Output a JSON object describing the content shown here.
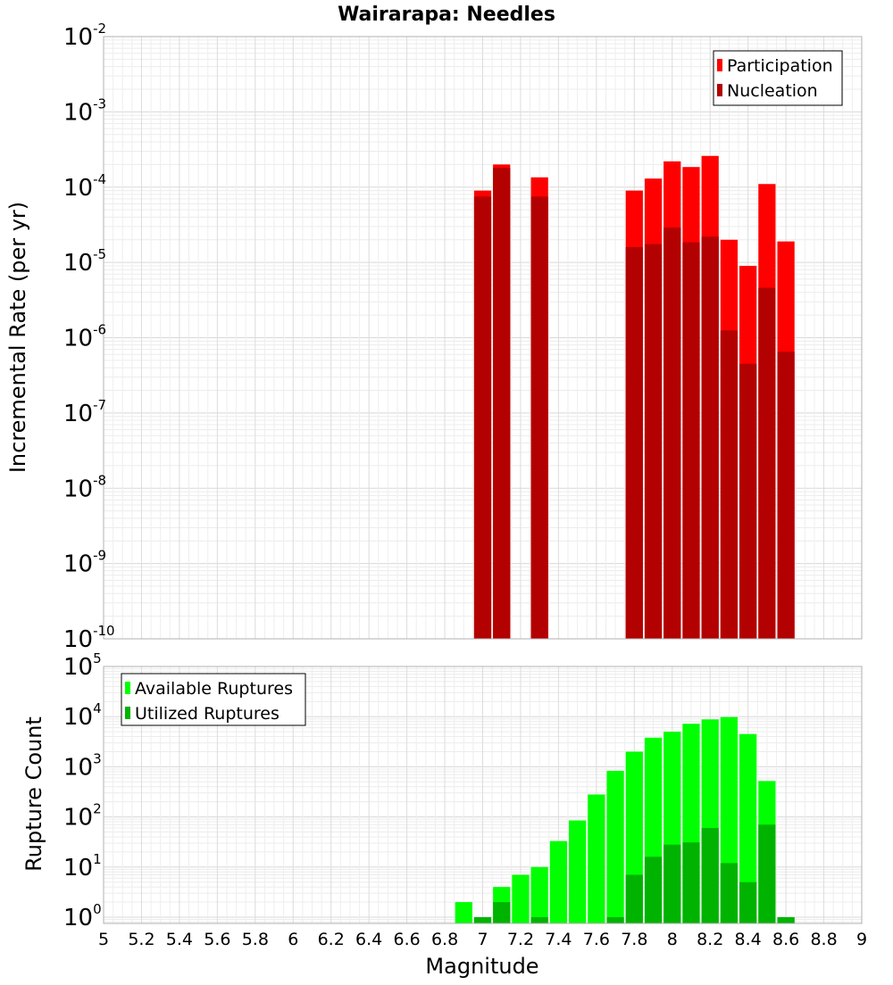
{
  "chart_data": [
    {
      "type": "bar",
      "title": "Wairarapa: Needles",
      "xlabel": "",
      "ylabel": "Incremental Rate (per yr)",
      "yscale": "log",
      "ylim": [
        1e-10,
        0.01
      ],
      "xlim": [
        5,
        9
      ],
      "grid": true,
      "legend_position": "top-right",
      "bin_width": 0.1,
      "series": [
        {
          "name": "Participation",
          "color": "#ff0000",
          "x": [
            7.0,
            7.1,
            7.3,
            7.8,
            7.9,
            8.0,
            8.1,
            8.2,
            8.3,
            8.4,
            8.5,
            8.6
          ],
          "values": [
            9e-05,
            0.0002,
            0.000135,
            9e-05,
            0.00013,
            0.00022,
            0.000185,
            0.00026,
            2e-05,
            9e-06,
            0.00011,
            1.9e-05
          ]
        },
        {
          "name": "Nucleation",
          "color": "#b30000",
          "x": [
            7.0,
            7.1,
            7.3,
            7.8,
            7.9,
            8.0,
            8.1,
            8.2,
            8.3,
            8.4,
            8.5,
            8.6
          ],
          "values": [
            7.5e-05,
            0.00018,
            7.5e-05,
            1.6e-05,
            1.75e-05,
            2.9e-05,
            1.85e-05,
            2.2e-05,
            1.25e-06,
            4.5e-07,
            4.6e-06,
            6.5e-07
          ]
        }
      ]
    },
    {
      "type": "bar",
      "title": "",
      "xlabel": "Magnitude",
      "ylabel": "Rupture Count",
      "yscale": "log",
      "ylim": [
        0.75,
        100000
      ],
      "xlim": [
        5,
        9
      ],
      "grid": true,
      "legend_position": "top-left",
      "bin_width": 0.1,
      "series": [
        {
          "name": "Available Ruptures",
          "color": "#00ff00",
          "x": [
            6.9,
            7.0,
            7.1,
            7.2,
            7.3,
            7.4,
            7.5,
            7.6,
            7.7,
            7.8,
            7.9,
            8.0,
            8.1,
            8.2,
            8.3,
            8.4,
            8.5,
            8.6
          ],
          "values": [
            2,
            1,
            4,
            7,
            10,
            33,
            85,
            280,
            830,
            2000,
            3800,
            5000,
            7200,
            8800,
            9800,
            4500,
            520,
            1
          ]
        },
        {
          "name": "Utilized Ruptures",
          "color": "#00b300",
          "x": [
            7.0,
            7.1,
            7.3,
            7.7,
            7.8,
            7.9,
            8.0,
            8.1,
            8.2,
            8.3,
            8.4,
            8.5,
            8.6
          ],
          "values": [
            1,
            2,
            1,
            1,
            7,
            16,
            28,
            31,
            60,
            12,
            5,
            70,
            1
          ]
        }
      ]
    }
  ],
  "x_ticks": [
    "5",
    "5.2",
    "5.4",
    "5.6",
    "5.8",
    "6",
    "6.2",
    "6.4",
    "6.6",
    "6.8",
    "7",
    "7.2",
    "7.4",
    "7.6",
    "7.8",
    "8",
    "8.2",
    "8.4",
    "8.6",
    "8.8",
    "9"
  ],
  "top_y_ticks": [
    {
      "base": "10",
      "exp": "-2"
    },
    {
      "base": "10",
      "exp": "-3"
    },
    {
      "base": "10",
      "exp": "-4"
    },
    {
      "base": "10",
      "exp": "-5"
    },
    {
      "base": "10",
      "exp": "-6"
    },
    {
      "base": "10",
      "exp": "-7"
    },
    {
      "base": "10",
      "exp": "-8"
    },
    {
      "base": "10",
      "exp": "-9"
    },
    {
      "base": "10",
      "exp": "-10"
    }
  ],
  "bottom_y_ticks": [
    {
      "base": "10",
      "exp": "5"
    },
    {
      "base": "10",
      "exp": "4"
    },
    {
      "base": "10",
      "exp": "3"
    },
    {
      "base": "10",
      "exp": "2"
    },
    {
      "base": "10",
      "exp": "1"
    },
    {
      "base": "10",
      "exp": "0"
    }
  ]
}
